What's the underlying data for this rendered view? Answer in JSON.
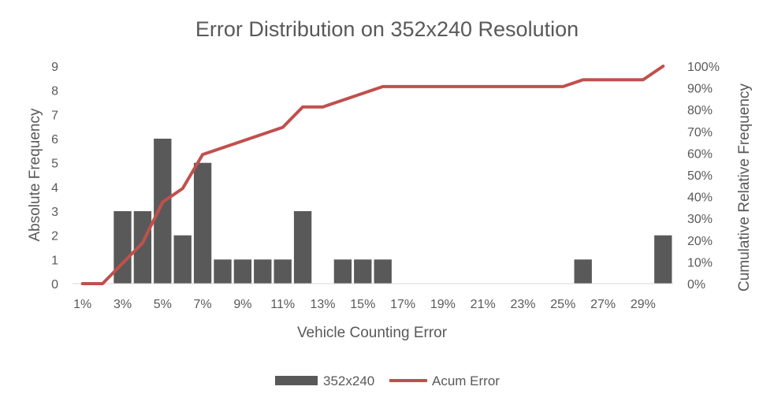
{
  "chart_data": {
    "type": "bar",
    "title": "Error Distribution on 352x240 Resolution",
    "xlabel": "Vehicle Counting Error",
    "ylabel": "Absolute Frequency",
    "y2label": "Cumulative Relative Frequency",
    "categories": [
      "1%",
      "2%",
      "3%",
      "4%",
      "5%",
      "6%",
      "7%",
      "8%",
      "9%",
      "10%",
      "11%",
      "12%",
      "13%",
      "14%",
      "15%",
      "16%",
      "17%",
      "18%",
      "19%",
      "20%",
      "21%",
      "22%",
      "23%",
      "24%",
      "25%",
      "26%",
      "27%",
      "28%",
      "29%",
      "30%"
    ],
    "x_tick_labels": [
      "1%",
      "3%",
      "5%",
      "7%",
      "9%",
      "11%",
      "13%",
      "15%",
      "17%",
      "19%",
      "21%",
      "23%",
      "25%",
      "27%",
      "29%"
    ],
    "ylim": [
      0,
      9
    ],
    "y_ticks": [
      "0",
      "1",
      "2",
      "3",
      "4",
      "5",
      "6",
      "7",
      "8",
      "9"
    ],
    "y2lim": [
      0,
      1
    ],
    "y2_ticks": [
      "0%",
      "10%",
      "20%",
      "30%",
      "40%",
      "50%",
      "60%",
      "70%",
      "80%",
      "90%",
      "100%"
    ],
    "series": [
      {
        "name": "352x240",
        "type": "bar",
        "axis": "left",
        "color": "#595959",
        "values": [
          0,
          0,
          3,
          3,
          6,
          2,
          5,
          1,
          1,
          1,
          1,
          3,
          0,
          1,
          1,
          1,
          0,
          0,
          0,
          0,
          0,
          0,
          0,
          0,
          0,
          1,
          0,
          0,
          0,
          2
        ]
      },
      {
        "name": "Acum Error",
        "type": "line",
        "axis": "right",
        "color": "#c0504d",
        "values": [
          0,
          0,
          0.0938,
          0.1875,
          0.375,
          0.4375,
          0.5938,
          0.625,
          0.6563,
          0.6875,
          0.7188,
          0.8125,
          0.8125,
          0.8438,
          0.875,
          0.9063,
          0.9063,
          0.9063,
          0.9063,
          0.9063,
          0.9063,
          0.9063,
          0.9063,
          0.9063,
          0.9063,
          0.9375,
          0.9375,
          0.9375,
          0.9375,
          1.0
        ]
      }
    ],
    "legend_position": "bottom",
    "grid": false
  }
}
